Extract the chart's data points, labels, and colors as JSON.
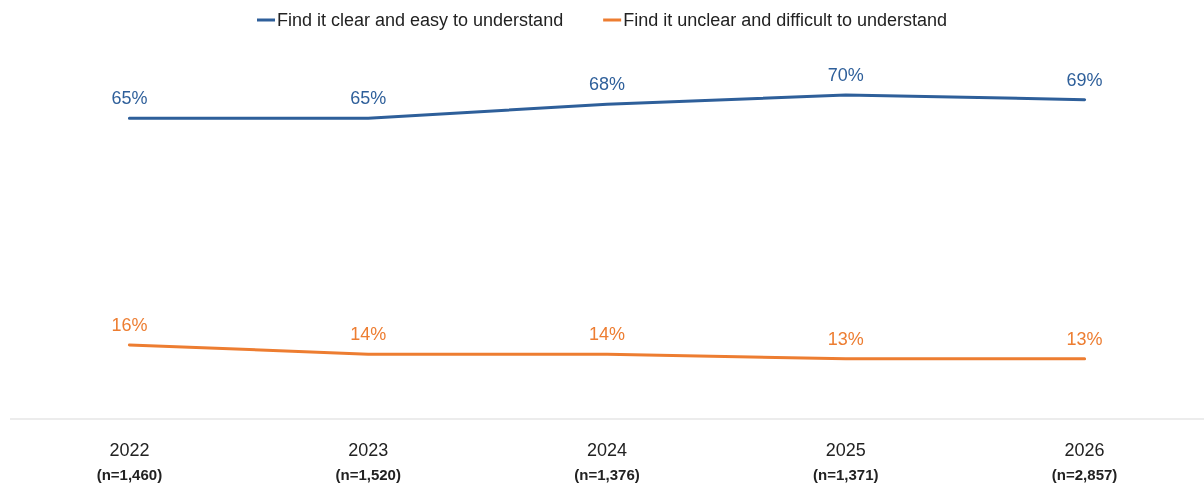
{
  "chart_data": {
    "type": "line",
    "categories": [
      "2022\n(n=1,460)",
      "2023\n(n=1,520)",
      "2024\n(n=1,376)",
      "2025\n(n=1,371)",
      "2026\n(n=2,857)"
    ],
    "series": [
      {
        "name": "Find it clear and easy to understand",
        "color": "#2e5f9a",
        "values": [
          65,
          65,
          68,
          70,
          69
        ],
        "value_labels": [
          "65%",
          "65%",
          "68%",
          "70%",
          "69%"
        ]
      },
      {
        "name": "Find it unclear and difficult to understand",
        "color": "#ed7d31",
        "values": [
          16,
          14,
          14,
          13,
          13
        ],
        "value_labels": [
          "16%",
          "14%",
          "14%",
          "13%",
          "13%"
        ]
      }
    ],
    "legend": "top",
    "tick_labels": "x",
    "marker": "none",
    "line_style": "solid"
  }
}
